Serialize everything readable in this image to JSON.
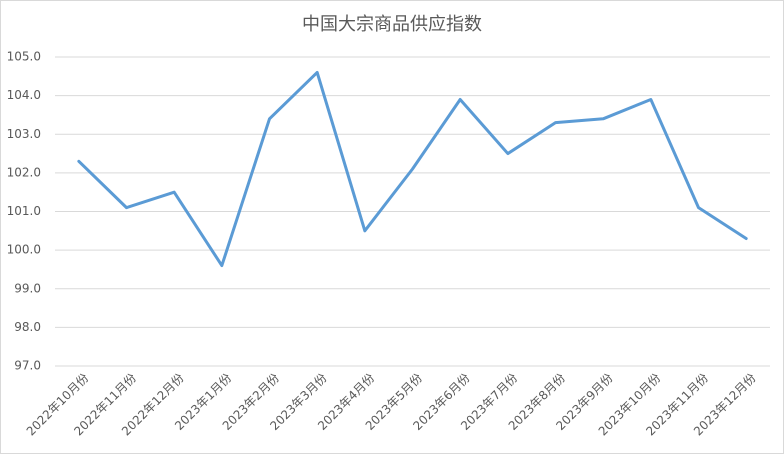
{
  "chart_data": {
    "type": "line",
    "title": "中国大宗商品供应指数",
    "categories": [
      "2022年10月份",
      "2022年11月份",
      "2022年12月份",
      "2023年1月份",
      "2023年2月份",
      "2023年3月份",
      "2023年4月份",
      "2023年5月份",
      "2023年6月份",
      "2023年7月份",
      "2023年8月份",
      "2023年9月份",
      "2023年10月份",
      "2023年11月份",
      "2023年12月份"
    ],
    "values": [
      102.3,
      101.1,
      101.5,
      99.6,
      103.4,
      104.6,
      100.5,
      102.1,
      103.9,
      102.5,
      103.3,
      103.4,
      103.9,
      101.1,
      100.3
    ],
    "color": "#5b9bd5",
    "ylim": [
      97,
      105
    ],
    "yticks": [
      {
        "value": 97,
        "label": "97.0"
      },
      {
        "value": 98,
        "label": "98.0"
      },
      {
        "value": 99,
        "label": "99.0"
      },
      {
        "value": 100,
        "label": "100.0"
      },
      {
        "value": 101,
        "label": "101.0"
      },
      {
        "value": 102,
        "label": "102.0"
      },
      {
        "value": 103,
        "label": "103.0"
      },
      {
        "value": 104,
        "label": "104.0"
      },
      {
        "value": 105,
        "label": "105.0"
      }
    ],
    "grid": true
  }
}
